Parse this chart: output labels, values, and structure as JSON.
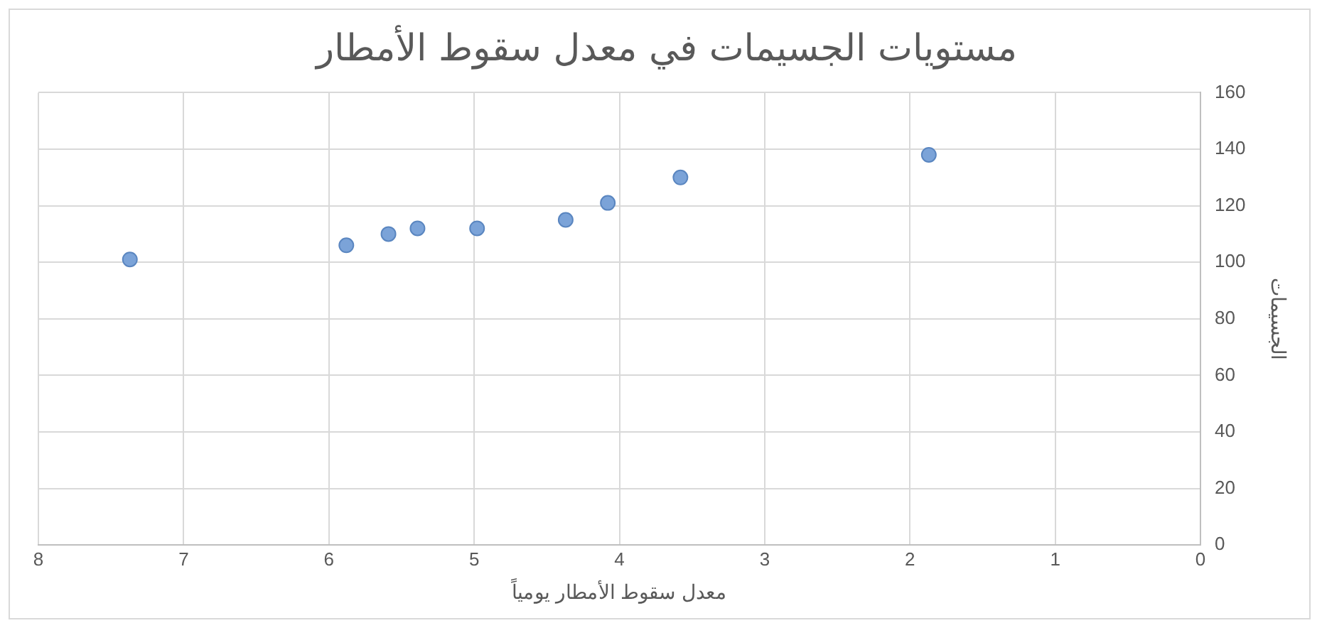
{
  "chart_data": {
    "type": "scatter",
    "title": "مستويات الجسيمات في معدل سقوط الأمطار",
    "xlabel": "معدل سقوط الأمطار يومياً",
    "ylabel": "الجسيمات",
    "x": [
      7.37,
      5.88,
      5.59,
      5.39,
      4.98,
      4.37,
      4.08,
      3.58,
      1.87
    ],
    "series": [
      {
        "color": "#7ba3d8",
        "values": [
          101,
          106,
          110,
          112,
          112,
          115,
          121,
          130,
          138
        ]
      }
    ],
    "xlim": [
      8,
      0
    ],
    "xticks": [
      0,
      1,
      2,
      3,
      4,
      5,
      6,
      7,
      8
    ],
    "ylim": [
      0,
      160
    ],
    "yticks": [
      0,
      20,
      40,
      60,
      80,
      100,
      120,
      140,
      160
    ],
    "grid": true,
    "legend": false,
    "marker": "circle"
  }
}
